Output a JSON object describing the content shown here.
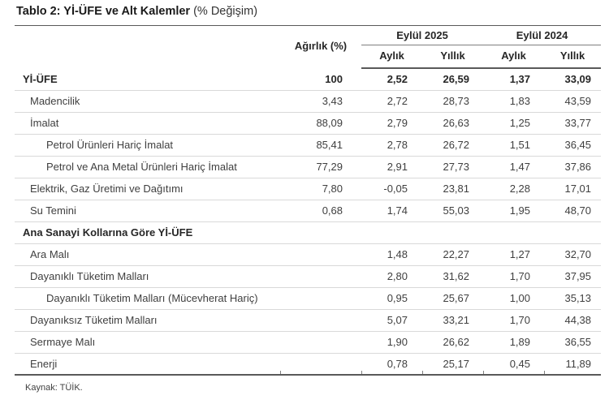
{
  "title": {
    "bold": "Tablo 2: Yİ-ÜFE ve Alt Kalemler",
    "suffix": "(% Değişim)"
  },
  "table": {
    "header": {
      "weight": "Ağırlık (%)",
      "groups": [
        {
          "label": "Eylül 2025",
          "sub": [
            "Aylık",
            "Yıllık"
          ]
        },
        {
          "label": "Eylül 2024",
          "sub": [
            "Aylık",
            "Yıllık"
          ]
        }
      ]
    },
    "rows": [
      {
        "label": "Yİ-ÜFE",
        "indent": 0,
        "bold": true,
        "values": [
          "100",
          "2,52",
          "26,59",
          "1,37",
          "33,09"
        ]
      },
      {
        "label": "Madencilik",
        "indent": 1,
        "bold": false,
        "values": [
          "3,43",
          "2,72",
          "28,73",
          "1,83",
          "43,59"
        ]
      },
      {
        "label": "İmalat",
        "indent": 1,
        "bold": false,
        "values": [
          "88,09",
          "2,79",
          "26,63",
          "1,25",
          "33,77"
        ]
      },
      {
        "label": "Petrol Ürünleri Hariç İmalat",
        "indent": 2,
        "bold": false,
        "values": [
          "85,41",
          "2,78",
          "26,72",
          "1,51",
          "36,45"
        ]
      },
      {
        "label": "Petrol ve Ana Metal Ürünleri Hariç İmalat",
        "indent": 2,
        "bold": false,
        "values": [
          "77,29",
          "2,91",
          "27,73",
          "1,47",
          "37,86"
        ]
      },
      {
        "label": "Elektrik, Gaz Üretimi ve Dağıtımı",
        "indent": 1,
        "bold": false,
        "values": [
          "7,80",
          "-0,05",
          "23,81",
          "2,28",
          "17,01"
        ]
      },
      {
        "label": "Su Temini",
        "indent": 1,
        "bold": false,
        "values": [
          "0,68",
          "1,74",
          "55,03",
          "1,95",
          "48,70"
        ]
      },
      {
        "label": "Ana Sanayi Kollarına Göre Yİ-ÜFE",
        "indent": 0,
        "bold": true,
        "values": [
          "",
          "",
          "",
          "",
          ""
        ]
      },
      {
        "label": "Ara Malı",
        "indent": 1,
        "bold": false,
        "values": [
          "",
          "1,48",
          "22,27",
          "1,27",
          "32,70"
        ]
      },
      {
        "label": "Dayanıklı Tüketim Malları",
        "indent": 1,
        "bold": false,
        "values": [
          "",
          "2,80",
          "31,62",
          "1,70",
          "37,95"
        ]
      },
      {
        "label": "Dayanıklı Tüketim Malları (Mücevherat Hariç)",
        "indent": 2,
        "bold": false,
        "values": [
          "",
          "0,95",
          "25,67",
          "1,00",
          "35,13"
        ]
      },
      {
        "label": "Dayanıksız Tüketim Malları",
        "indent": 1,
        "bold": false,
        "values": [
          "",
          "5,07",
          "33,21",
          "1,70",
          "44,38"
        ]
      },
      {
        "label": "Sermaye Malı",
        "indent": 1,
        "bold": false,
        "values": [
          "",
          "1,90",
          "26,62",
          "1,89",
          "36,55"
        ]
      },
      {
        "label": "Enerji",
        "indent": 1,
        "bold": false,
        "values": [
          "",
          "0,78",
          "25,17",
          "0,45",
          "11,89"
        ]
      }
    ]
  },
  "footer": {
    "source": "Kaynak: TÜİK."
  },
  "colors": {
    "dark_border": "#595959",
    "light_border": "#d9d9d9",
    "group_underline": "#7f7f7f",
    "text": "#3f3f3f",
    "text_bold": "#262626"
  }
}
